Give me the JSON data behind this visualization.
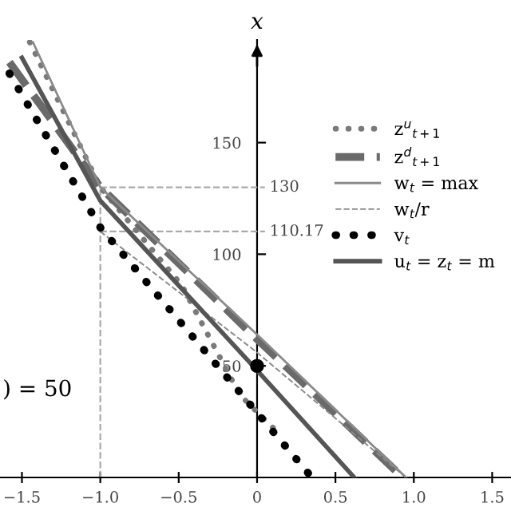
{
  "chart_data": {
    "type": "line",
    "ylabel": "x",
    "xlim": [
      -1.64,
      1.62
    ],
    "ylim": [
      0,
      196
    ],
    "xticks": [
      {
        "value": -1.5,
        "label": "−1.5"
      },
      {
        "value": -1.0,
        "label": "−1.0"
      },
      {
        "value": -0.5,
        "label": "−0.5"
      },
      0,
      0.5,
      {
        "value": 1.0,
        "label": "1.0"
      },
      1.5
    ],
    "yticks": [
      50,
      100,
      150
    ],
    "series": [
      {
        "name": "z$^{u}$$_{t+1}$",
        "color": "#7a7a7a",
        "line_style": "dotted",
        "x": [
          -1.45,
          -1.0,
          -0.48,
          -0.11,
          0.12
        ],
        "values": [
          195,
          130,
          86,
          37,
          21
        ]
      },
      {
        "name": "z$^{d}$$_{t+1}$",
        "color": "#6a6a6a",
        "line_style": "dashed",
        "x": [
          -1.58,
          -1.0,
          0,
          0.93
        ],
        "values": [
          186,
          130,
          62,
          0
        ]
      },
      {
        "name": "w$_{t}$ = max",
        "color": "#8a8a8a",
        "line_style": "solid",
        "x": [
          -1.43,
          -1.0,
          0,
          0.95
        ],
        "values": [
          195,
          130,
          64,
          0
        ]
      },
      {
        "name": "w$_{t}$/r",
        "color": "#8a8a8a",
        "line_style": "dashed",
        "x": [
          -1.0,
          0,
          0.95
        ],
        "values": [
          110.17,
          56,
          0
        ]
      },
      {
        "name": "v$_{t}$",
        "color": "#000000",
        "line_style": "dotted",
        "x": [
          -1.58,
          -1.0,
          0,
          0.35
        ],
        "values": [
          181,
          112,
          29,
          0
        ]
      },
      {
        "name": "u$_{t}$ = z$_{t}$ = m",
        "color": "#555555",
        "line_style": "solid",
        "x": [
          -1.5,
          -1.0,
          0,
          0.62
        ],
        "values": [
          188,
          124,
          48,
          0
        ]
      },
      {
        "type": "scatter",
        "color": "#000000",
        "x": [
          0
        ],
        "values": [
          50
        ]
      }
    ],
    "ref_lines": [
      {
        "axis": "y",
        "value": 130,
        "label": "130",
        "color": "#aaaaaa",
        "line_style": "dashed"
      },
      {
        "axis": "y",
        "value": 110.17,
        "label": "110.17",
        "color": "#aaaaaa",
        "line_style": "dashed"
      },
      {
        "axis": "x",
        "value": -1.0,
        "color": "#aaaaaa",
        "line_style": "dashed"
      }
    ],
    "annotations": [
      ") = 50"
    ],
    "legend": "top right",
    "grid": false
  }
}
